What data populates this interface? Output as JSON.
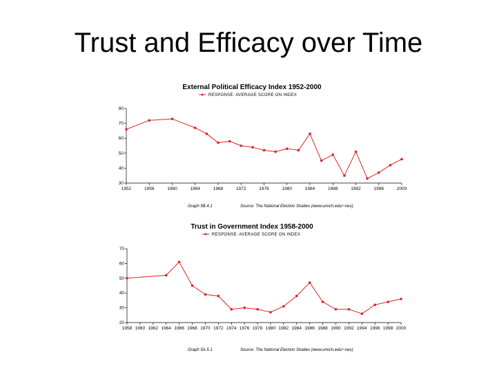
{
  "slide": {
    "title": "Trust and Efficacy over Time"
  },
  "colors": {
    "series": "#dd2222",
    "axis": "#000000"
  },
  "chart_data": [
    {
      "type": "line",
      "title": "External Political Efficacy Index 1952-2000",
      "legend": "RESPONSE: AVERAGE SCORE ON INDEX",
      "x": [
        1952,
        1956,
        1960,
        1964,
        1966,
        1968,
        1970,
        1972,
        1974,
        1976,
        1978,
        1980,
        1982,
        1984,
        1986,
        1988,
        1990,
        1992,
        1994,
        1996,
        1998,
        2000
      ],
      "y": [
        66,
        72,
        73,
        67,
        63,
        57,
        58,
        55,
        54,
        52,
        51,
        53,
        52,
        63,
        45,
        49,
        35,
        51,
        33,
        37,
        42,
        46
      ],
      "x_ticks": [
        "1952",
        "1956",
        "1960",
        "1964",
        "1968",
        "1972",
        "1976",
        "1980",
        "1984",
        "1988",
        "1992",
        "1996",
        "2000"
      ],
      "x_tick_values": [
        1952,
        1956,
        1960,
        1964,
        1968,
        1972,
        1976,
        1980,
        1984,
        1988,
        1992,
        1996,
        2000
      ],
      "y_ticks": [
        "80",
        "70",
        "60",
        "50",
        "40",
        "30"
      ],
      "xlim": [
        1952,
        2000
      ],
      "ylim": [
        30,
        80
      ],
      "caption": "Graph 5B.4.1",
      "source": "Source: The National Election Studies (www.umich.edu/~nes)"
    },
    {
      "type": "line",
      "title": "Trust in Government Index 1958-2000",
      "legend": "RESPONSE: AVERAGE SCORE ON INDEX",
      "x": [
        1958,
        1964,
        1966,
        1968,
        1970,
        1972,
        1974,
        1976,
        1978,
        1980,
        1982,
        1984,
        1986,
        1988,
        1990,
        1992,
        1994,
        1996,
        1998,
        2000
      ],
      "y": [
        50,
        52,
        61,
        45,
        39,
        38,
        29,
        30,
        29,
        27,
        31,
        38,
        47,
        34,
        29,
        29,
        26,
        32,
        34,
        36
      ],
      "x_ticks": [
        "1958",
        "1960",
        "1962",
        "1964",
        "1966",
        "1968",
        "1970",
        "1972",
        "1974",
        "1976",
        "1978",
        "1980",
        "1982",
        "1984",
        "1986",
        "1988",
        "1990",
        "1992",
        "1994",
        "1996",
        "1998",
        "2000"
      ],
      "x_tick_values": [
        1958,
        1960,
        1962,
        1964,
        1966,
        1968,
        1970,
        1972,
        1974,
        1976,
        1978,
        1980,
        1982,
        1984,
        1986,
        1988,
        1990,
        1992,
        1994,
        1996,
        1998,
        2000
      ],
      "y_ticks": [
        "70",
        "60",
        "50",
        "40",
        "30",
        "20"
      ],
      "xlim": [
        1958,
        2000
      ],
      "ylim": [
        20,
        70
      ],
      "caption": "Graph 5A.5.1",
      "source": "Source: The National Election Studies (www.umich.edu/~nes)"
    }
  ]
}
